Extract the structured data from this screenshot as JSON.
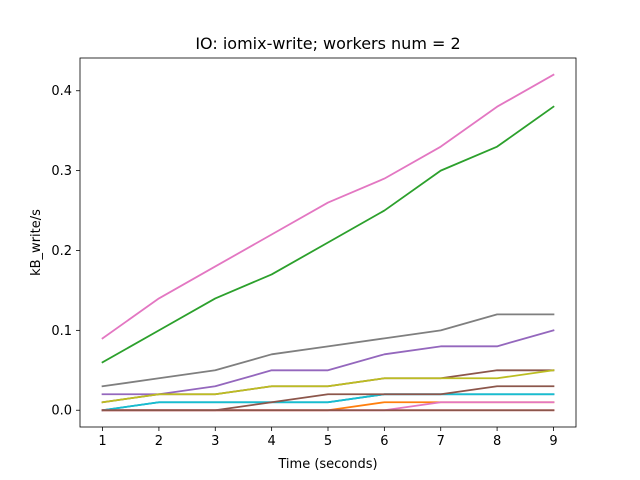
{
  "chart_data": {
    "type": "line",
    "title": "IO: iomix-write; workers num = 2",
    "xlabel": "Time (seconds)",
    "ylabel": "kB_write/s",
    "x": [
      1,
      2,
      3,
      4,
      5,
      6,
      7,
      8,
      9
    ],
    "xlim": [
      0.6,
      9.4
    ],
    "ylim": [
      -0.021,
      0.441
    ],
    "xticks": [
      "1",
      "2",
      "3",
      "4",
      "5",
      "6",
      "7",
      "8",
      "9"
    ],
    "yticks": [
      {
        "value": 0.0,
        "label": "0.0"
      },
      {
        "value": 0.1,
        "label": "0.1"
      },
      {
        "value": 0.2,
        "label": "0.2"
      },
      {
        "value": 0.3,
        "label": "0.3"
      },
      {
        "value": 0.4,
        "label": "0.4"
      }
    ],
    "grid": false,
    "legend": "none",
    "series": [
      {
        "color": "#1f77b4",
        "values": [
          0,
          0.01,
          0.01,
          0.01,
          0.01,
          0.02,
          0.02,
          0.02,
          0.02
        ]
      },
      {
        "color": "#ff7f0e",
        "values": [
          0,
          0,
          0,
          0,
          0,
          0.01,
          0.01,
          0.01,
          0.01
        ]
      },
      {
        "color": "#2ca02c",
        "values": [
          0.06,
          0.1,
          0.14,
          0.17,
          0.21,
          0.25,
          0.3,
          0.33,
          0.38
        ]
      },
      {
        "color": "#d62728",
        "values": [
          0,
          0,
          0,
          0,
          0,
          0,
          0,
          0,
          0
        ]
      },
      {
        "color": "#9467bd",
        "values": [
          0.02,
          0.02,
          0.03,
          0.05,
          0.05,
          0.07,
          0.08,
          0.08,
          0.1
        ]
      },
      {
        "color": "#8c564b",
        "values": [
          0.01,
          0.02,
          0.02,
          0.03,
          0.03,
          0.04,
          0.04,
          0.05,
          0.05
        ]
      },
      {
        "color": "#e377c2",
        "values": [
          0.09,
          0.14,
          0.18,
          0.22,
          0.26,
          0.29,
          0.33,
          0.38,
          0.42
        ]
      },
      {
        "color": "#7f7f7f",
        "values": [
          0.03,
          0.04,
          0.05,
          0.07,
          0.08,
          0.09,
          0.1,
          0.12,
          0.12
        ]
      },
      {
        "color": "#bcbd22",
        "values": [
          0.01,
          0.02,
          0.02,
          0.03,
          0.03,
          0.04,
          0.04,
          0.04,
          0.05
        ]
      },
      {
        "color": "#17becf",
        "values": [
          0,
          0.01,
          0.01,
          0.01,
          0.01,
          0.02,
          0.02,
          0.02,
          0.02
        ]
      },
      {
        "color": "#8c564b",
        "values": [
          0,
          0,
          0,
          0.01,
          0.02,
          0.02,
          0.02,
          0.03,
          0.03
        ]
      },
      {
        "color": "#e377c2",
        "values": [
          0,
          0,
          0,
          0,
          0,
          0,
          0.01,
          0.01,
          0.01
        ]
      },
      {
        "color": "#8c564b",
        "values": [
          0,
          0,
          0,
          0,
          0,
          0,
          0,
          0,
          0
        ]
      }
    ]
  }
}
